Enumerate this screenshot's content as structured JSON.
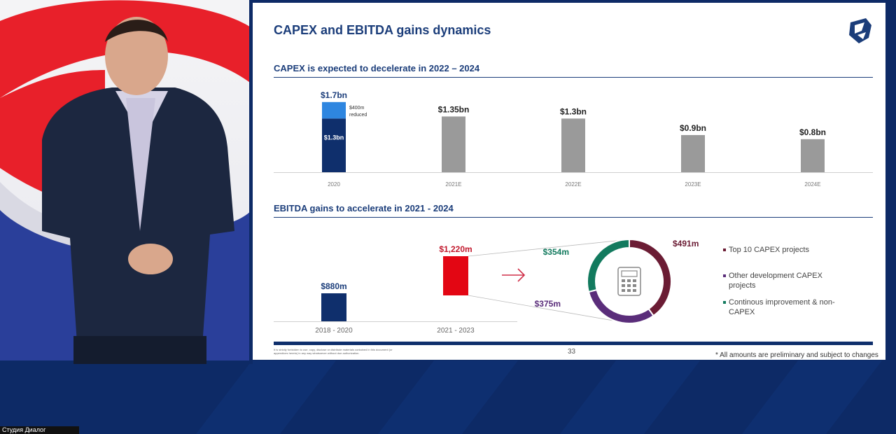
{
  "slide": {
    "title": "CAPEX and EBITDA gains dynamics",
    "page_number": "33",
    "footnote": "* All amounts are preliminary and subject to changes",
    "disclaimer": "It is strictly forbidden to use, copy, disclose or distribute materials contained in this document (or appendices hereto) in any way whatsoever without due authorization."
  },
  "colors": {
    "navy": "#0f2f6c",
    "light_blue": "#2e86e0",
    "gray": "#9a9a9a",
    "red": "#e30613",
    "maroon": "#6b1c34",
    "purple": "#5a2d7a",
    "teal": "#127a5e",
    "brand": "#1b3d7a"
  },
  "caption": "Студия Диалог",
  "chart_data": [
    {
      "type": "bar",
      "title": "CAPEX is expected to decelerate in 2022 – 2024",
      "categories": [
        "2020",
        "2021E",
        "2022E",
        "2023E",
        "2024E"
      ],
      "values": [
        1.7,
        1.35,
        1.3,
        0.9,
        0.8
      ],
      "value_labels": [
        "$1.7bn",
        "$1.35bn",
        "$1.3bn",
        "$0.9bn",
        "$0.8bn"
      ],
      "stack_2020": {
        "base_value": 1.3,
        "base_label": "$1.3bn",
        "reduced_value": 0.4,
        "reduced_label": "$400m reduced"
      },
      "ylim": [
        0,
        1.9
      ]
    },
    {
      "type": "bar",
      "title": "EBITDA gains to accelerate in 2021 - 2024",
      "categories": [
        "2018 - 2020",
        "2021 - 2023"
      ],
      "values": [
        880,
        1220
      ],
      "value_labels": [
        "$880m",
        "$1,220m"
      ],
      "ylim": [
        0,
        1400
      ]
    },
    {
      "type": "pie",
      "slices": [
        {
          "label": "$491m",
          "value": 491,
          "name": "Top 10 CAPEX projects",
          "color": "#6b1c34"
        },
        {
          "label": "$375m",
          "value": 375,
          "name": "Other development CAPEX projects",
          "color": "#5a2d7a"
        },
        {
          "label": "$354m",
          "value": 354,
          "name": "Continous improvement & non-CAPEX",
          "color": "#127a5e"
        }
      ]
    }
  ]
}
